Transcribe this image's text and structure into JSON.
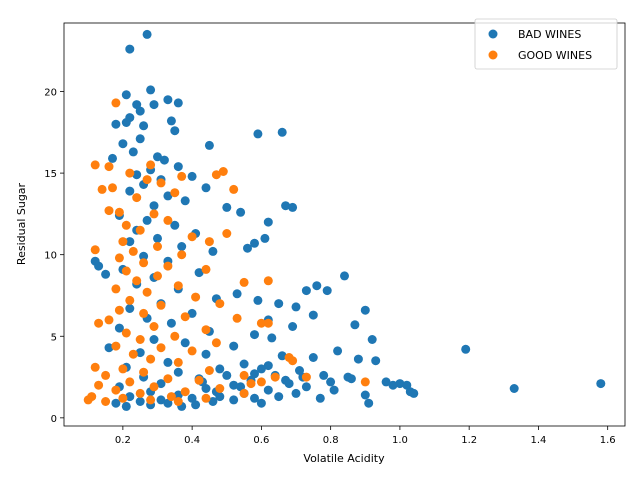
{
  "chart_data": {
    "type": "scatter",
    "title": "",
    "xlabel": "Volatile Acidity",
    "ylabel": "Residual Sugar",
    "xlim": [
      0.03,
      1.65
    ],
    "ylim": [
      -0.5,
      24.2
    ],
    "xticks": [
      0.2,
      0.4,
      0.6,
      0.8,
      1.0,
      1.2,
      1.4,
      1.6
    ],
    "xtick_labels": [
      "0.2",
      "0.4",
      "0.6",
      "0.8",
      "1.0",
      "1.2",
      "1.4",
      "1.6"
    ],
    "yticks": [
      0,
      5,
      10,
      15,
      20
    ],
    "ytick_labels": [
      "0",
      "5",
      "10",
      "15",
      "20"
    ],
    "grid": false,
    "legend_position": "top-right",
    "series": [
      {
        "name": "BAD WINES",
        "color": "#1f77b4",
        "points": [
          [
            0.27,
            23.5
          ],
          [
            0.22,
            22.6
          ],
          [
            0.28,
            20.1
          ],
          [
            0.21,
            19.8
          ],
          [
            0.33,
            19.5
          ],
          [
            0.36,
            19.3
          ],
          [
            0.24,
            19.2
          ],
          [
            0.29,
            19.2
          ],
          [
            0.25,
            18.8
          ],
          [
            0.22,
            18.4
          ],
          [
            0.34,
            18.2
          ],
          [
            0.21,
            18.1
          ],
          [
            0.18,
            18.0
          ],
          [
            0.26,
            17.9
          ],
          [
            0.35,
            17.6
          ],
          [
            0.59,
            17.4
          ],
          [
            0.66,
            17.5
          ],
          [
            0.25,
            17.1
          ],
          [
            0.45,
            16.7
          ],
          [
            0.2,
            16.8
          ],
          [
            0.23,
            16.3
          ],
          [
            0.3,
            16.0
          ],
          [
            0.17,
            15.9
          ],
          [
            0.32,
            15.8
          ],
          [
            0.36,
            15.4
          ],
          [
            0.28,
            15.2
          ],
          [
            0.24,
            14.9
          ],
          [
            0.4,
            14.8
          ],
          [
            0.31,
            14.6
          ],
          [
            0.26,
            14.3
          ],
          [
            0.44,
            14.1
          ],
          [
            0.22,
            13.9
          ],
          [
            0.33,
            13.6
          ],
          [
            0.38,
            13.3
          ],
          [
            0.29,
            13.0
          ],
          [
            0.5,
            12.9
          ],
          [
            0.67,
            13.0
          ],
          [
            0.69,
            12.9
          ],
          [
            0.54,
            12.6
          ],
          [
            0.19,
            12.4
          ],
          [
            0.27,
            12.1
          ],
          [
            0.35,
            11.8
          ],
          [
            0.62,
            12.0
          ],
          [
            0.24,
            11.5
          ],
          [
            0.41,
            11.3
          ],
          [
            0.3,
            11.0
          ],
          [
            0.61,
            11.0
          ],
          [
            0.22,
            10.8
          ],
          [
            0.37,
            10.5
          ],
          [
            0.56,
            10.4
          ],
          [
            0.58,
            10.7
          ],
          [
            0.46,
            10.2
          ],
          [
            0.26,
            9.9
          ],
          [
            0.33,
            9.6
          ],
          [
            0.12,
            9.6
          ],
          [
            0.13,
            9.3
          ],
          [
            0.2,
            9.1
          ],
          [
            0.42,
            8.9
          ],
          [
            0.15,
            8.8
          ],
          [
            0.29,
            8.6
          ],
          [
            0.84,
            8.7
          ],
          [
            0.76,
            8.1
          ],
          [
            0.79,
            7.8
          ],
          [
            0.73,
            7.8
          ],
          [
            0.24,
            8.2
          ],
          [
            0.36,
            7.9
          ],
          [
            0.53,
            7.6
          ],
          [
            0.47,
            7.3
          ],
          [
            0.59,
            7.2
          ],
          [
            0.65,
            7.0
          ],
          [
            0.7,
            6.8
          ],
          [
            0.31,
            7.0
          ],
          [
            0.22,
            6.7
          ],
          [
            0.4,
            6.4
          ],
          [
            0.75,
            6.3
          ],
          [
            0.9,
            6.6
          ],
          [
            0.27,
            6.1
          ],
          [
            0.62,
            6.0
          ],
          [
            0.34,
            5.8
          ],
          [
            0.87,
            5.7
          ],
          [
            0.69,
            5.6
          ],
          [
            0.19,
            5.5
          ],
          [
            0.45,
            5.3
          ],
          [
            0.58,
            5.1
          ],
          [
            0.63,
            4.9
          ],
          [
            0.29,
            4.8
          ],
          [
            0.92,
            4.8
          ],
          [
            0.38,
            4.6
          ],
          [
            0.52,
            4.4
          ],
          [
            0.16,
            4.3
          ],
          [
            0.82,
            4.1
          ],
          [
            0.25,
            4.0
          ],
          [
            0.44,
            3.9
          ],
          [
            0.66,
            3.8
          ],
          [
            0.75,
            3.7
          ],
          [
            0.88,
            3.6
          ],
          [
            0.93,
            3.5
          ],
          [
            0.33,
            3.4
          ],
          [
            0.55,
            3.3
          ],
          [
            0.62,
            3.2
          ],
          [
            0.21,
            3.1
          ],
          [
            0.48,
            3.0
          ],
          [
            0.71,
            2.9
          ],
          [
            0.36,
            2.8
          ],
          [
            0.58,
            2.7
          ],
          [
            0.78,
            2.6
          ],
          [
            0.85,
            2.5
          ],
          [
            0.26,
            2.5
          ],
          [
            0.42,
            2.4
          ],
          [
            0.67,
            2.3
          ],
          [
            0.96,
            2.2
          ],
          [
            1.0,
            2.1
          ],
          [
            1.02,
            2.0
          ],
          [
            0.31,
            2.1
          ],
          [
            0.52,
            2.0
          ],
          [
            0.73,
            1.9
          ],
          [
            0.19,
            1.9
          ],
          [
            0.44,
            1.8
          ],
          [
            0.62,
            1.7
          ],
          [
            0.81,
            1.7
          ],
          [
            1.03,
            1.6
          ],
          [
            0.28,
            1.6
          ],
          [
            0.55,
            1.5
          ],
          [
            0.7,
            1.5
          ],
          [
            0.9,
            1.4
          ],
          [
            0.36,
            1.4
          ],
          [
            0.48,
            1.3
          ],
          [
            0.65,
            1.3
          ],
          [
            0.22,
            1.3
          ],
          [
            0.4,
            1.2
          ],
          [
            0.58,
            1.2
          ],
          [
            0.77,
            1.2
          ],
          [
            0.31,
            1.1
          ],
          [
            0.52,
            1.1
          ],
          [
            0.25,
            1.0
          ],
          [
            0.46,
            1.0
          ],
          [
            0.18,
            0.9
          ],
          [
            0.33,
            0.9
          ],
          [
            0.6,
            0.9
          ],
          [
            0.91,
            0.9
          ],
          [
            0.28,
            0.8
          ],
          [
            0.41,
            0.8
          ],
          [
            0.21,
            0.7
          ],
          [
            0.37,
            0.7
          ],
          [
            1.19,
            4.2
          ],
          [
            1.33,
            1.8
          ],
          [
            1.58,
            2.1
          ],
          [
            0.98,
            2.0
          ],
          [
            1.04,
            1.5
          ],
          [
            0.86,
            2.4
          ],
          [
            0.8,
            2.2
          ],
          [
            0.72,
            2.5
          ],
          [
            0.68,
            2.1
          ],
          [
            0.64,
            2.6
          ],
          [
            0.6,
            3.0
          ],
          [
            0.57,
            2.3
          ],
          [
            0.54,
            1.9
          ],
          [
            0.5,
            2.6
          ],
          [
            0.47,
            1.6
          ],
          [
            0.43,
            2.2
          ]
        ]
      },
      {
        "name": "GOOD WINES",
        "color": "#ff7f0e",
        "points": [
          [
            0.18,
            19.3
          ],
          [
            0.12,
            15.5
          ],
          [
            0.16,
            15.4
          ],
          [
            0.28,
            15.5
          ],
          [
            0.22,
            15.0
          ],
          [
            0.49,
            15.1
          ],
          [
            0.37,
            14.8
          ],
          [
            0.47,
            14.9
          ],
          [
            0.27,
            14.6
          ],
          [
            0.31,
            14.4
          ],
          [
            0.14,
            14.0
          ],
          [
            0.17,
            14.1
          ],
          [
            0.52,
            14.0
          ],
          [
            0.35,
            13.8
          ],
          [
            0.24,
            13.5
          ],
          [
            0.16,
            12.7
          ],
          [
            0.19,
            12.6
          ],
          [
            0.29,
            12.5
          ],
          [
            0.33,
            12.1
          ],
          [
            0.21,
            11.8
          ],
          [
            0.25,
            11.5
          ],
          [
            0.5,
            11.3
          ],
          [
            0.4,
            11.1
          ],
          [
            0.2,
            10.8
          ],
          [
            0.45,
            10.8
          ],
          [
            0.3,
            10.5
          ],
          [
            0.12,
            10.3
          ],
          [
            0.23,
            10.2
          ],
          [
            0.37,
            10.0
          ],
          [
            0.19,
            9.8
          ],
          [
            0.26,
            9.5
          ],
          [
            0.33,
            9.3
          ],
          [
            0.44,
            9.1
          ],
          [
            0.21,
            9.0
          ],
          [
            0.3,
            8.7
          ],
          [
            0.55,
            8.3
          ],
          [
            0.62,
            8.4
          ],
          [
            0.24,
            8.4
          ],
          [
            0.36,
            8.1
          ],
          [
            0.18,
            7.9
          ],
          [
            0.27,
            7.7
          ],
          [
            0.41,
            7.4
          ],
          [
            0.22,
            7.2
          ],
          [
            0.48,
            7.0
          ],
          [
            0.31,
            6.9
          ],
          [
            0.19,
            6.6
          ],
          [
            0.26,
            6.4
          ],
          [
            0.38,
            6.2
          ],
          [
            0.53,
            6.1
          ],
          [
            0.16,
            6.0
          ],
          [
            0.6,
            5.8
          ],
          [
            0.62,
            5.8
          ],
          [
            0.13,
            5.8
          ],
          [
            0.29,
            5.6
          ],
          [
            0.44,
            5.4
          ],
          [
            0.21,
            5.2
          ],
          [
            0.35,
            5.0
          ],
          [
            0.25,
            4.8
          ],
          [
            0.47,
            4.6
          ],
          [
            0.18,
            4.4
          ],
          [
            0.31,
            4.3
          ],
          [
            0.4,
            4.1
          ],
          [
            0.23,
            3.9
          ],
          [
            0.68,
            3.7
          ],
          [
            0.69,
            3.5
          ],
          [
            0.28,
            3.6
          ],
          [
            0.36,
            3.4
          ],
          [
            0.12,
            3.1
          ],
          [
            0.2,
            3.0
          ],
          [
            0.45,
            2.9
          ],
          [
            0.26,
            2.8
          ],
          [
            0.55,
            2.6
          ],
          [
            0.64,
            2.5
          ],
          [
            0.73,
            2.5
          ],
          [
            0.15,
            2.6
          ],
          [
            0.33,
            2.4
          ],
          [
            0.42,
            2.3
          ],
          [
            0.22,
            2.2
          ],
          [
            0.57,
            2.1
          ],
          [
            0.6,
            2.2
          ],
          [
            0.9,
            2.2
          ],
          [
            0.13,
            2.0
          ],
          [
            0.29,
            1.9
          ],
          [
            0.48,
            1.8
          ],
          [
            0.18,
            1.7
          ],
          [
            0.38,
            1.6
          ],
          [
            0.25,
            1.5
          ],
          [
            0.55,
            1.5
          ],
          [
            0.11,
            1.3
          ],
          [
            0.34,
            1.3
          ],
          [
            0.2,
            1.2
          ],
          [
            0.44,
            1.2
          ],
          [
            0.1,
            1.1
          ],
          [
            0.28,
            1.1
          ],
          [
            0.15,
            1.0
          ],
          [
            0.36,
            1.0
          ]
        ]
      }
    ]
  }
}
